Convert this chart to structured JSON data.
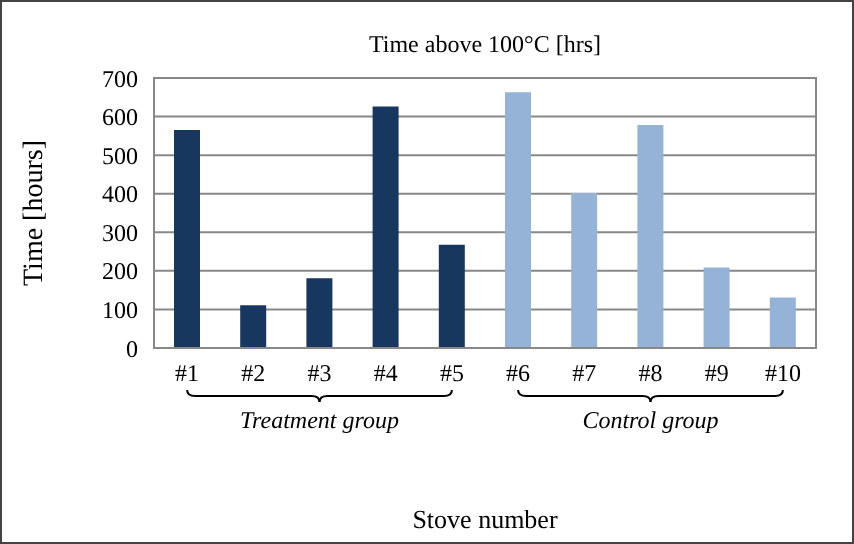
{
  "chart_data": {
    "type": "bar",
    "title": "Time above 100°C [hrs]",
    "xlabel": "Stove number",
    "ylabel": "Time [hours]",
    "categories": [
      "#1",
      "#2",
      "#3",
      "#4",
      "#5",
      "#6",
      "#7",
      "#8",
      "#9",
      "#10"
    ],
    "values": [
      565,
      111,
      181,
      626,
      268,
      663,
      402,
      578,
      209,
      131
    ],
    "colors": [
      "#17375e",
      "#17375e",
      "#17375e",
      "#17375e",
      "#17375e",
      "#95b3d7",
      "#95b3d7",
      "#95b3d7",
      "#95b3d7",
      "#95b3d7"
    ],
    "ylim": [
      0,
      700
    ],
    "yticks": [
      0,
      100,
      200,
      300,
      400,
      500,
      600,
      700
    ],
    "grid": "y",
    "annotations": [
      "Treatment group",
      "Control group"
    ]
  }
}
